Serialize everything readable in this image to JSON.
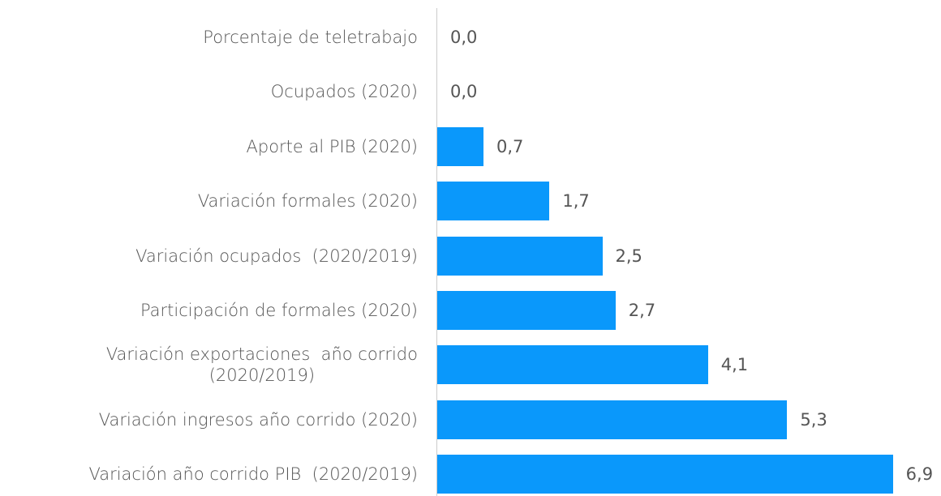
{
  "chart_data": {
    "type": "bar",
    "orientation": "horizontal",
    "categories": [
      "Porcentaje de teletrabajo",
      "Ocupados (2020)",
      "Aporte al PIB (2020)",
      "Variación formales (2020)",
      "Variación ocupados  (2020/2019)",
      "Participación de formales (2020)",
      "Variación exportaciones  año corrido\n(2020/2019)",
      "Variación ingresos año corrido (2020)",
      "Variación año corrido PIB  (2020/2019)"
    ],
    "values": [
      0.0,
      0.0,
      0.7,
      1.7,
      2.5,
      2.7,
      4.1,
      5.3,
      6.9
    ],
    "value_labels": [
      "0,0",
      "0,0",
      "0,7",
      "1,7",
      "2,5",
      "2,7",
      "4,1",
      "5,3",
      "6,9"
    ],
    "color": "#0a98fb"
  }
}
